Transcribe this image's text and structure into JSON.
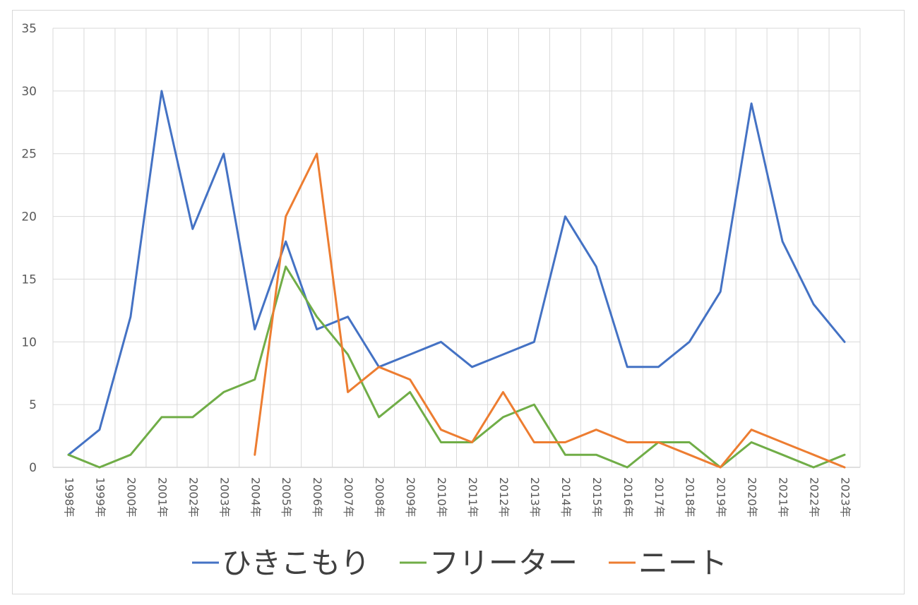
{
  "chart_data": {
    "type": "line",
    "title": "",
    "xlabel": "",
    "ylabel": "",
    "categories": [
      "1998年",
      "1999年",
      "2000年",
      "2001年",
      "2002年",
      "2003年",
      "2004年",
      "2005年",
      "2006年",
      "2007年",
      "2008年",
      "2009年",
      "2010年",
      "2011年",
      "2012年",
      "2013年",
      "2014年",
      "2015年",
      "2016年",
      "2017年",
      "2018年",
      "2019年",
      "2020年",
      "2021年",
      "2022年",
      "2023年"
    ],
    "ylim": [
      0,
      35
    ],
    "yticks": [
      "0",
      "5",
      "10",
      "15",
      "20",
      "25",
      "30",
      "35"
    ],
    "grid": true,
    "legend_position": "bottom",
    "series": [
      {
        "name": "ひきこもり",
        "color": "#4472c4",
        "values": [
          1,
          3,
          12,
          30,
          19,
          25,
          11,
          18,
          11,
          12,
          8,
          9,
          10,
          8,
          9,
          10,
          20,
          16,
          8,
          8,
          10,
          14,
          29,
          18,
          13,
          10
        ]
      },
      {
        "name": "フリーター",
        "color": "#70ad47",
        "values": [
          1,
          0,
          1,
          4,
          4,
          6,
          7,
          16,
          12,
          9,
          4,
          6,
          2,
          2,
          4,
          5,
          1,
          1,
          0,
          2,
          2,
          0,
          2,
          1,
          0,
          1
        ]
      },
      {
        "name": "ニート",
        "color": "#ed7d31",
        "values": [
          null,
          null,
          null,
          null,
          null,
          null,
          1,
          20,
          25,
          6,
          8,
          7,
          3,
          2,
          6,
          2,
          2,
          3,
          2,
          2,
          1,
          0,
          3,
          2,
          1,
          0
        ]
      }
    ]
  }
}
